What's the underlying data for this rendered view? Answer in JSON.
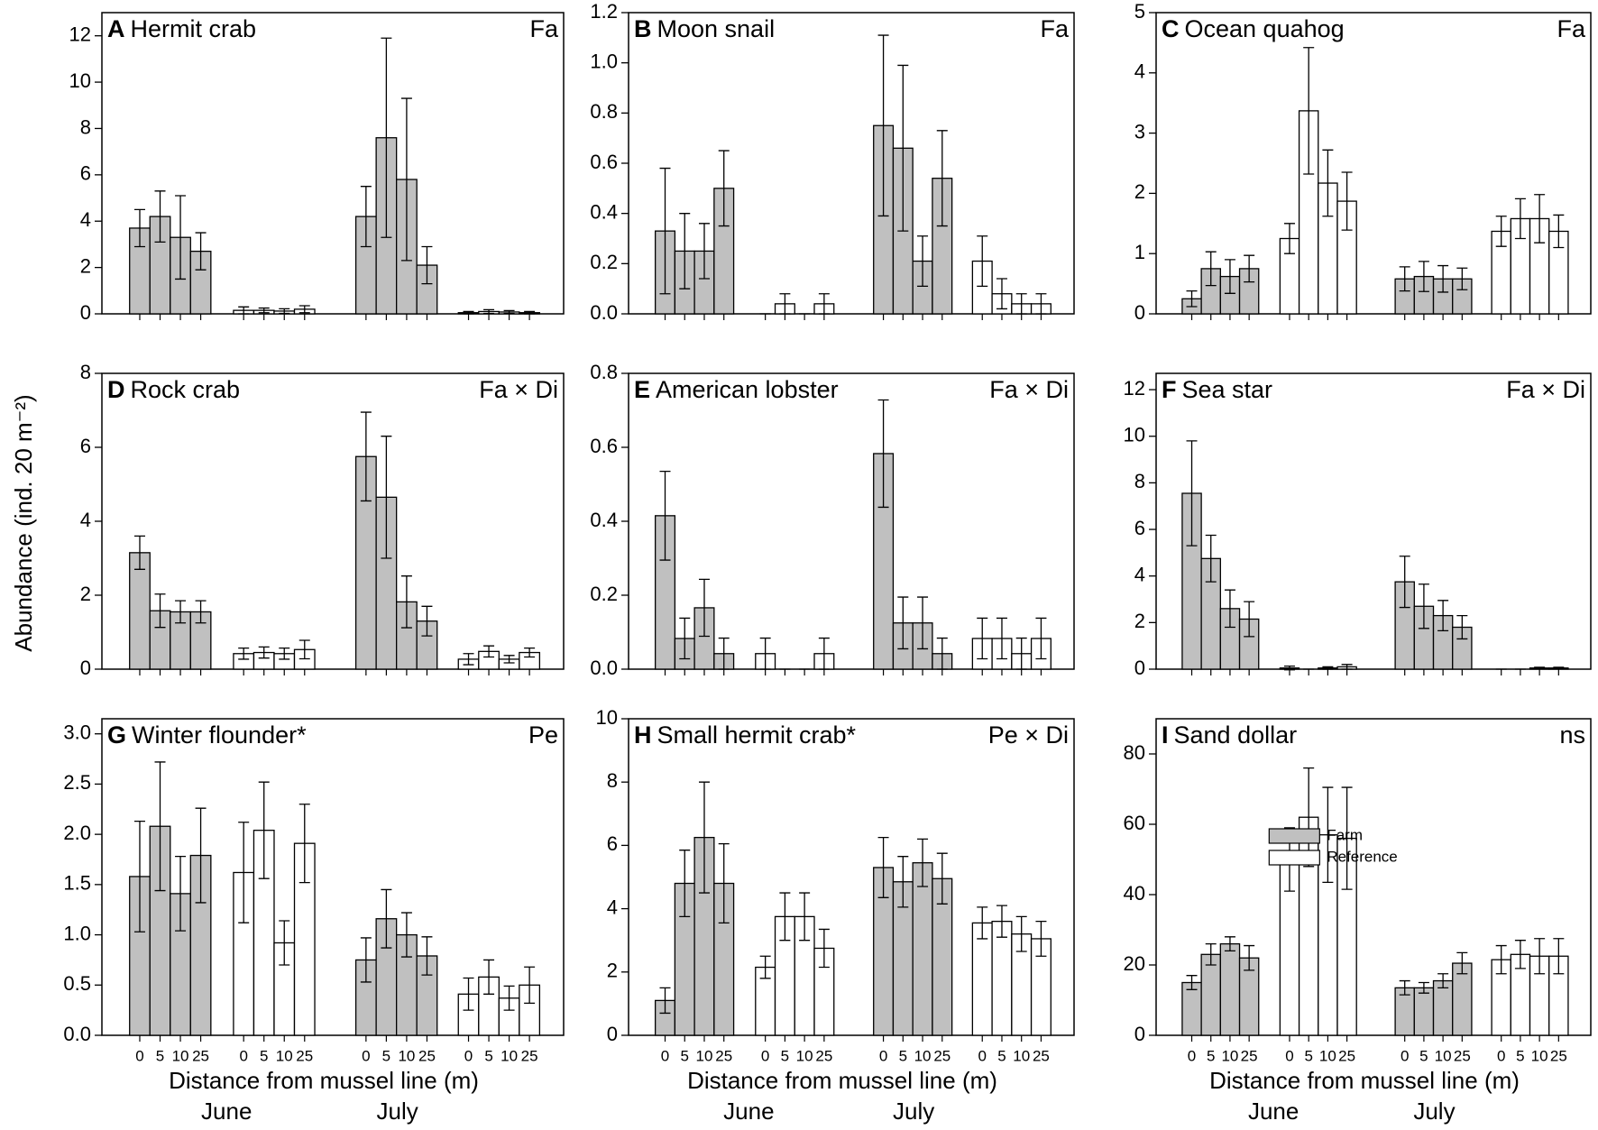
{
  "y_label": "Abundance (ind. 20 m⁻²)",
  "x_label": "Distance from mussel line (m)",
  "months": [
    "June",
    "July"
  ],
  "categories": [
    "0",
    "5",
    "10",
    "25"
  ],
  "chart_data": [
    {
      "type": "bar",
      "label": "A",
      "title": "Hermit crab",
      "effect": "Fa",
      "ylim": [
        0,
        13
      ],
      "yticks": [
        0,
        2,
        4,
        6,
        8,
        10,
        12
      ],
      "series": [
        {
          "color": "#c0c0c0",
          "values": [
            3.7,
            4.2,
            3.3,
            2.7
          ],
          "errors": [
            0.8,
            1.1,
            1.8,
            0.8
          ]
        },
        {
          "color": "#ffffff",
          "values": [
            0.15,
            0.15,
            0.12,
            0.2
          ],
          "errors": [
            0.15,
            0.1,
            0.1,
            0.15
          ]
        },
        {
          "color": "#c0c0c0",
          "values": [
            4.2,
            7.6,
            5.8,
            2.1
          ],
          "errors": [
            1.3,
            4.3,
            3.5,
            0.8
          ]
        },
        {
          "color": "#ffffff",
          "values": [
            0.05,
            0.1,
            0.08,
            0.05
          ],
          "errors": [
            0.05,
            0.08,
            0.06,
            0.05
          ]
        }
      ]
    },
    {
      "type": "bar",
      "label": "B",
      "title": "Moon snail",
      "effect": "Fa",
      "ylim": [
        0,
        1.2
      ],
      "yticks": [
        {
          "value": 0,
          "label": "0.0"
        },
        {
          "value": 0.2,
          "label": "0.2"
        },
        {
          "value": 0.4,
          "label": "0.4"
        },
        {
          "value": 0.6,
          "label": "0.6"
        },
        {
          "value": 0.8,
          "label": "0.8"
        },
        {
          "value": 1,
          "label": "1.0"
        },
        {
          "value": 1.2,
          "label": "1.2"
        }
      ],
      "series": [
        {
          "color": "#c0c0c0",
          "values": [
            0.33,
            0.25,
            0.25,
            0.5
          ],
          "errors": [
            0.25,
            0.15,
            0.11,
            0.15
          ]
        },
        {
          "color": "#ffffff",
          "values": [
            0,
            0.04,
            0,
            0.04
          ],
          "errors": [
            0,
            0.04,
            0,
            0.04
          ]
        },
        {
          "color": "#c0c0c0",
          "values": [
            0.75,
            0.66,
            0.21,
            0.54
          ],
          "errors": [
            0.36,
            0.33,
            0.1,
            0.19
          ]
        },
        {
          "color": "#ffffff",
          "values": [
            0.21,
            0.08,
            0.04,
            0.04
          ],
          "errors": [
            0.1,
            0.06,
            0.04,
            0.04
          ]
        }
      ]
    },
    {
      "type": "bar",
      "label": "C",
      "title": "Ocean quahog",
      "effect": "Fa",
      "ylim": [
        0,
        5
      ],
      "yticks": [
        0,
        1,
        2,
        3,
        4,
        5
      ],
      "series": [
        {
          "color": "#c0c0c0",
          "values": [
            0.25,
            0.75,
            0.62,
            0.75
          ],
          "errors": [
            0.13,
            0.28,
            0.28,
            0.22
          ]
        },
        {
          "color": "#ffffff",
          "values": [
            1.25,
            3.37,
            2.17,
            1.87
          ],
          "errors": [
            0.25,
            1.05,
            0.55,
            0.48
          ]
        },
        {
          "color": "#c0c0c0",
          "values": [
            0.58,
            0.62,
            0.58,
            0.58
          ],
          "errors": [
            0.2,
            0.25,
            0.22,
            0.18
          ]
        },
        {
          "color": "#ffffff",
          "values": [
            1.37,
            1.58,
            1.58,
            1.37
          ],
          "errors": [
            0.25,
            0.33,
            0.4,
            0.27
          ]
        }
      ]
    },
    {
      "type": "bar",
      "label": "D",
      "title": "Rock crab",
      "effect": "Fa × Di",
      "ylim": [
        0,
        8
      ],
      "yticks": [
        0,
        2,
        4,
        6,
        8
      ],
      "series": [
        {
          "color": "#c0c0c0",
          "values": [
            3.15,
            1.58,
            1.55,
            1.55
          ],
          "errors": [
            0.45,
            0.45,
            0.3,
            0.3
          ]
        },
        {
          "color": "#ffffff",
          "values": [
            0.42,
            0.45,
            0.42,
            0.53
          ],
          "errors": [
            0.15,
            0.15,
            0.15,
            0.25
          ]
        },
        {
          "color": "#c0c0c0",
          "values": [
            5.75,
            4.65,
            1.82,
            1.3
          ],
          "errors": [
            1.2,
            1.65,
            0.7,
            0.4
          ]
        },
        {
          "color": "#ffffff",
          "values": [
            0.27,
            0.48,
            0.27,
            0.45
          ],
          "errors": [
            0.15,
            0.15,
            0.1,
            0.12
          ]
        }
      ]
    },
    {
      "type": "bar",
      "label": "E",
      "title": "American lobster",
      "effect": "Fa × Di",
      "ylim": [
        0,
        0.8
      ],
      "yticks": [
        {
          "value": 0,
          "label": "0.0"
        },
        {
          "value": 0.2,
          "label": "0.2"
        },
        {
          "value": 0.4,
          "label": "0.4"
        },
        {
          "value": 0.6,
          "label": "0.6"
        },
        {
          "value": 0.8,
          "label": "0.8"
        }
      ],
      "series": [
        {
          "color": "#c0c0c0",
          "values": [
            0.415,
            0.083,
            0.166,
            0.042
          ],
          "errors": [
            0.12,
            0.055,
            0.077,
            0.042
          ]
        },
        {
          "color": "#ffffff",
          "values": [
            0.042,
            0,
            0,
            0.042
          ],
          "errors": [
            0.042,
            0,
            0,
            0.042
          ]
        },
        {
          "color": "#c0c0c0",
          "values": [
            0.583,
            0.125,
            0.125,
            0.042
          ],
          "errors": [
            0.145,
            0.07,
            0.07,
            0.042
          ]
        },
        {
          "color": "#ffffff",
          "values": [
            0.083,
            0.083,
            0.042,
            0.083
          ],
          "errors": [
            0.055,
            0.055,
            0.042,
            0.055
          ]
        }
      ]
    },
    {
      "type": "bar",
      "label": "F",
      "title": "Sea star",
      "effect": "Fa × Di",
      "ylim": [
        0,
        12.7
      ],
      "yticks": [
        0,
        2,
        4,
        6,
        8,
        10,
        12
      ],
      "series": [
        {
          "color": "#c0c0c0",
          "values": [
            7.55,
            4.75,
            2.6,
            2.15
          ],
          "errors": [
            2.25,
            1,
            0.8,
            0.75
          ]
        },
        {
          "color": "#ffffff",
          "values": [
            0.05,
            0,
            0.05,
            0.1
          ],
          "errors": [
            0.08,
            0,
            0.05,
            0.1
          ]
        },
        {
          "color": "#c0c0c0",
          "values": [
            3.75,
            2.7,
            2.3,
            1.8
          ],
          "errors": [
            1.1,
            0.95,
            0.65,
            0.5
          ]
        },
        {
          "color": "#ffffff",
          "values": [
            0,
            0,
            0.05,
            0.05
          ],
          "errors": [
            0,
            0,
            0.03,
            0.03
          ]
        }
      ]
    },
    {
      "type": "bar",
      "label": "G",
      "title": "Winter flounder*",
      "effect": "Pe",
      "ylim": [
        0,
        3.15
      ],
      "yticks": [
        {
          "value": 0,
          "label": "0.0"
        },
        {
          "value": 0.5,
          "label": "0.5"
        },
        {
          "value": 1,
          "label": "1.0"
        },
        {
          "value": 1.5,
          "label": "1.5"
        },
        {
          "value": 2,
          "label": "2.0"
        },
        {
          "value": 2.5,
          "label": "2.5"
        },
        {
          "value": 3,
          "label": "3.0"
        }
      ],
      "series": [
        {
          "color": "#c0c0c0",
          "values": [
            1.58,
            2.08,
            1.41,
            1.79
          ],
          "errors": [
            0.55,
            0.64,
            0.37,
            0.47
          ]
        },
        {
          "color": "#ffffff",
          "values": [
            1.62,
            2.04,
            0.92,
            1.91
          ],
          "errors": [
            0.5,
            0.48,
            0.22,
            0.39
          ]
        },
        {
          "color": "#c0c0c0",
          "values": [
            0.75,
            1.16,
            1.0,
            0.79
          ],
          "errors": [
            0.22,
            0.29,
            0.22,
            0.19
          ]
        },
        {
          "color": "#ffffff",
          "values": [
            0.41,
            0.58,
            0.37,
            0.5
          ],
          "errors": [
            0.16,
            0.17,
            0.12,
            0.18
          ]
        }
      ]
    },
    {
      "type": "bar",
      "label": "H",
      "title": "Small hermit crab*",
      "effect": "Pe × Di",
      "ylim": [
        0,
        10
      ],
      "yticks": [
        0,
        2,
        4,
        6,
        8,
        10
      ],
      "series": [
        {
          "color": "#c0c0c0",
          "values": [
            1.1,
            4.8,
            6.25,
            4.8
          ],
          "errors": [
            0.4,
            1.05,
            1.75,
            1.25
          ]
        },
        {
          "color": "#ffffff",
          "values": [
            2.15,
            3.75,
            3.75,
            2.75
          ],
          "errors": [
            0.35,
            0.75,
            0.75,
            0.6
          ]
        },
        {
          "color": "#c0c0c0",
          "values": [
            5.3,
            4.85,
            5.45,
            4.95
          ],
          "errors": [
            0.95,
            0.8,
            0.75,
            0.8
          ]
        },
        {
          "color": "#ffffff",
          "values": [
            3.55,
            3.6,
            3.2,
            3.05
          ],
          "errors": [
            0.5,
            0.5,
            0.55,
            0.55
          ]
        }
      ]
    },
    {
      "type": "bar",
      "label": "I",
      "title": "Sand dollar",
      "effect": "ns",
      "ylim": [
        0,
        90
      ],
      "yticks": [
        0,
        20,
        40,
        60,
        80
      ],
      "legend": [
        {
          "name": "Farm",
          "color": "#c0c0c0"
        },
        {
          "name": "Reference",
          "color": "#ffffff"
        }
      ],
      "series": [
        {
          "color": "#c0c0c0",
          "values": [
            15,
            23,
            26,
            22
          ],
          "errors": [
            2,
            3,
            2,
            3.5
          ]
        },
        {
          "color": "#ffffff",
          "values": [
            50,
            62,
            57,
            56
          ],
          "errors": [
            9,
            14,
            13.5,
            14.5
          ]
        },
        {
          "color": "#c0c0c0",
          "values": [
            13.5,
            13.5,
            15.5,
            20.5
          ],
          "errors": [
            2,
            1.5,
            2,
            3
          ]
        },
        {
          "color": "#ffffff",
          "values": [
            21.5,
            23,
            22.5,
            22.5
          ],
          "errors": [
            4,
            4,
            5,
            5
          ]
        }
      ]
    }
  ]
}
